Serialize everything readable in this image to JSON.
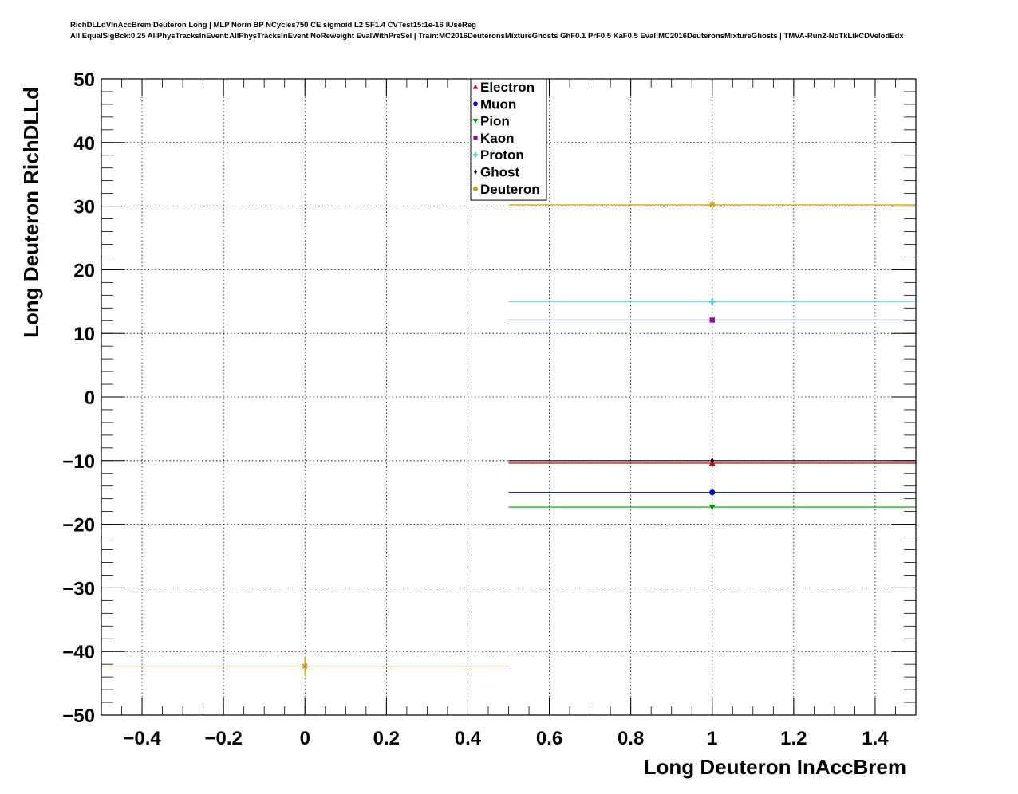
{
  "header": {
    "title_line1": "RichDLLdVInAccBrem Deuteron Long | MLP Norm BP NCycles750 CE sigmoid L2 SF1.4 CVTest15:1e-16 !UseReg",
    "title_line2": "All EqualSigBck:0.25 AllPhysTracksInEvent:AllPhysTracksInEvent NoReweight EvalWithPreSel | Train:MC2016DeuteronsMixtureGhosts GhF0.1 PrF0.5 KaF0.5 Eval:MC2016DeuteronsMixtureGhosts | TMVA-Run2-NoTkLikCDVelodEdx"
  },
  "chart_data": {
    "type": "scatter",
    "title": "",
    "xlabel": "Long Deuteron InAccBrem",
    "ylabel": "Long Deuteron RichDLLd",
    "xlim": [
      -0.5,
      1.5
    ],
    "ylim": [
      -50,
      50
    ],
    "x_ticks": [
      -0.4,
      -0.2,
      0,
      0.2,
      0.4,
      0.6,
      0.8,
      1,
      1.2,
      1.4
    ],
    "x_tick_labels": [
      "−0.4",
      "−0.2",
      "0",
      "0.2",
      "0.4",
      "0.6",
      "0.8",
      "1",
      "1.2",
      "1.4"
    ],
    "y_ticks": [
      -50,
      -40,
      -30,
      -20,
      -10,
      0,
      10,
      20,
      30,
      40,
      50
    ],
    "y_tick_labels": [
      "−50",
      "−40",
      "−30",
      "−20",
      "−10",
      "0",
      "10",
      "20",
      "30",
      "40",
      "50"
    ],
    "grid": true,
    "legend_position": "top-center",
    "series": [
      {
        "name": "Electron",
        "color": "#cc0000",
        "marker": "triangle-up",
        "points": [
          {
            "x": 1,
            "y": -10.4,
            "xerr": 0.5,
            "yerr": 0.6
          }
        ]
      },
      {
        "name": "Muon",
        "color": "#0000cc",
        "marker": "circle",
        "points": [
          {
            "x": 1,
            "y": -15.0,
            "xerr": 0.5,
            "yerr": 0.4
          }
        ]
      },
      {
        "name": "Pion",
        "color": "#009900",
        "marker": "triangle-down",
        "points": [
          {
            "x": 1,
            "y": -17.3,
            "xerr": 0.5,
            "yerr": 0.4
          }
        ]
      },
      {
        "name": "Kaon",
        "color": "#990099",
        "marker": "square",
        "points": [
          {
            "x": 1,
            "y": 12.1,
            "xerr": 0.5,
            "yerr": 0.3
          }
        ]
      },
      {
        "name": "Proton",
        "color": "#66cccc",
        "marker": "cross",
        "points": [
          {
            "x": 1,
            "y": 15.0,
            "xerr": 0.5,
            "yerr": 0.3
          }
        ]
      },
      {
        "name": "Ghost",
        "color": "#000000",
        "marker": "diamond",
        "points": [
          {
            "x": 1,
            "y": -10.0,
            "xerr": 0.5,
            "yerr": 0.3
          }
        ]
      },
      {
        "name": "Deuteron",
        "color": "#c8a000",
        "marker": "star",
        "points": [
          {
            "x": 0,
            "y": -42.3,
            "xerr": 0.5,
            "yerr": 1.5
          },
          {
            "x": 1,
            "y": 30.2,
            "xerr": 0.5,
            "yerr": 0.4
          }
        ]
      }
    ]
  }
}
